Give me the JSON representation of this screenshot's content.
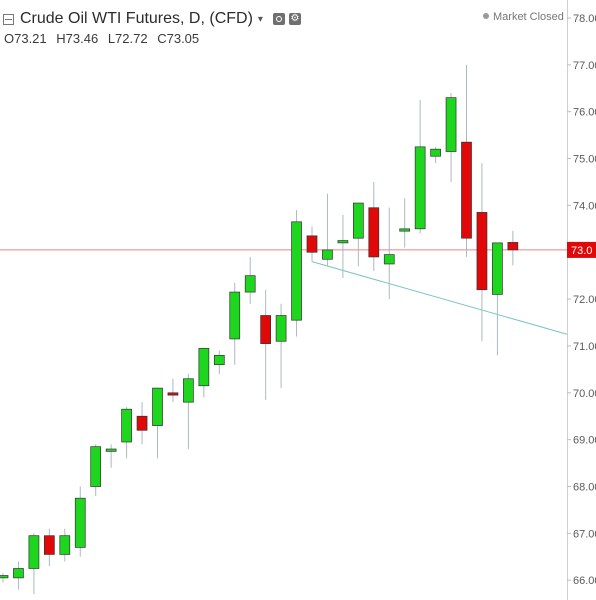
{
  "header": {
    "title": "Crude Oil WTI Futures, D, (CFD)",
    "caret": "▾",
    "status": "Market Closed"
  },
  "ohlc": {
    "open": "O73.21",
    "high": "H73.46",
    "low": "L72.72",
    "close": "C73.05"
  },
  "colors": {
    "up": "#1dd61d",
    "down": "#e00808",
    "wick": "#a9b9c5",
    "price_line": "#f08080",
    "price_label_bg": "#e00808",
    "trendline": "#78c5c5",
    "axis_text": "#5a5a5a"
  },
  "chart_data": {
    "type": "candlestick",
    "title": "Crude Oil WTI Futures, D, (CFD)",
    "ylim": [
      65.7,
      78.3
    ],
    "y_ticks": [
      "78.00",
      "77.00",
      "76.00",
      "75.00",
      "74.00",
      "73.00",
      "72.00",
      "71.00",
      "70.00",
      "69.00",
      "68.00",
      "67.00",
      "66.00"
    ],
    "last_price": 73.05,
    "last_price_label": "73.0",
    "grid": false,
    "candles": [
      {
        "o": 66.05,
        "h": 66.15,
        "l": 65.95,
        "c": 66.1
      },
      {
        "o": 66.05,
        "h": 66.4,
        "l": 65.8,
        "c": 66.25
      },
      {
        "o": 66.25,
        "h": 67.0,
        "l": 65.7,
        "c": 66.95
      },
      {
        "o": 66.95,
        "h": 67.1,
        "l": 66.3,
        "c": 66.55
      },
      {
        "o": 66.55,
        "h": 67.1,
        "l": 66.4,
        "c": 66.95
      },
      {
        "o": 66.7,
        "h": 68.0,
        "l": 66.5,
        "c": 67.75
      },
      {
        "o": 68.0,
        "h": 68.9,
        "l": 67.8,
        "c": 68.85
      },
      {
        "o": 68.75,
        "h": 68.9,
        "l": 68.4,
        "c": 68.8
      },
      {
        "o": 68.95,
        "h": 69.7,
        "l": 68.6,
        "c": 69.65
      },
      {
        "o": 69.5,
        "h": 69.8,
        "l": 68.9,
        "c": 69.2
      },
      {
        "o": 69.3,
        "h": 70.1,
        "l": 68.6,
        "c": 70.1
      },
      {
        "o": 70.0,
        "h": 70.3,
        "l": 69.8,
        "c": 69.95
      },
      {
        "o": 69.8,
        "h": 70.4,
        "l": 68.8,
        "c": 70.3
      },
      {
        "o": 70.15,
        "h": 70.95,
        "l": 69.9,
        "c": 70.95
      },
      {
        "o": 70.6,
        "h": 70.9,
        "l": 70.4,
        "c": 70.8
      },
      {
        "o": 71.15,
        "h": 72.35,
        "l": 70.6,
        "c": 72.15
      },
      {
        "o": 72.15,
        "h": 72.9,
        "l": 71.9,
        "c": 72.5
      },
      {
        "o": 71.65,
        "h": 72.2,
        "l": 69.85,
        "c": 71.05
      },
      {
        "o": 71.1,
        "h": 71.9,
        "l": 70.1,
        "c": 71.65
      },
      {
        "o": 71.55,
        "h": 73.9,
        "l": 71.2,
        "c": 73.65
      },
      {
        "o": 73.35,
        "h": 73.55,
        "l": 72.8,
        "c": 73.0
      },
      {
        "o": 72.85,
        "h": 74.25,
        "l": 72.7,
        "c": 73.05
      },
      {
        "o": 73.2,
        "h": 73.8,
        "l": 72.45,
        "c": 73.25
      },
      {
        "o": 73.3,
        "h": 74.05,
        "l": 72.7,
        "c": 74.05
      },
      {
        "o": 73.95,
        "h": 74.5,
        "l": 72.6,
        "c": 72.9
      },
      {
        "o": 72.75,
        "h": 73.95,
        "l": 72.0,
        "c": 72.95
      },
      {
        "o": 73.45,
        "h": 74.15,
        "l": 73.1,
        "c": 73.5
      },
      {
        "o": 73.5,
        "h": 76.25,
        "l": 73.4,
        "c": 75.25
      },
      {
        "o": 75.05,
        "h": 75.25,
        "l": 74.9,
        "c": 75.2
      },
      {
        "o": 75.15,
        "h": 76.4,
        "l": 74.5,
        "c": 76.3
      },
      {
        "o": 75.35,
        "h": 77.0,
        "l": 72.9,
        "c": 73.3
      },
      {
        "o": 73.85,
        "h": 74.9,
        "l": 71.1,
        "c": 72.2
      },
      {
        "o": 72.1,
        "h": 73.2,
        "l": 70.8,
        "c": 73.2
      },
      {
        "o": 73.21,
        "h": 73.46,
        "l": 72.72,
        "c": 73.05
      }
    ],
    "trendline": {
      "start_bar": 20,
      "start_price": 72.8,
      "end_bar": 36.5,
      "end_price": 71.25
    }
  }
}
